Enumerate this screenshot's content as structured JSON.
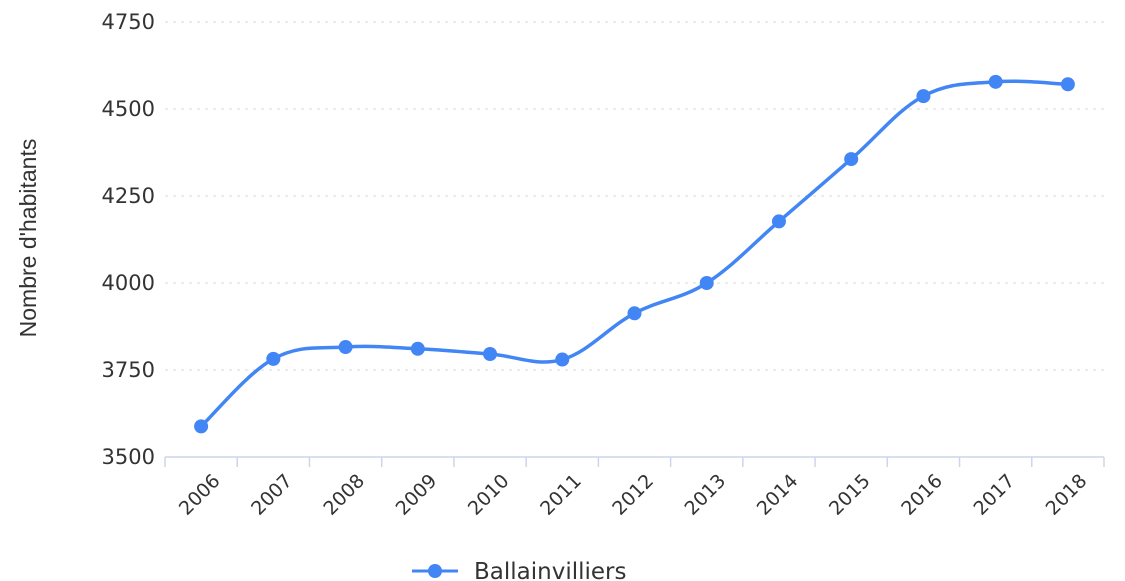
{
  "chart_data": {
    "type": "line",
    "title": "",
    "xlabel": "",
    "ylabel": "Nombre d'habitants",
    "categories": [
      "2006",
      "2007",
      "2008",
      "2009",
      "2010",
      "2011",
      "2012",
      "2013",
      "2014",
      "2015",
      "2016",
      "2017",
      "2018"
    ],
    "series": [
      {
        "name": "Ballainvilliers",
        "color": "#4285f4",
        "values": [
          3588,
          3782,
          3816,
          3811,
          3796,
          3780,
          3913,
          4000,
          4177,
          4356,
          4537,
          4578,
          4571
        ]
      }
    ],
    "ylim": [
      3500,
      4750
    ],
    "yticks": [
      "3500",
      "3750",
      "4000",
      "4250",
      "4500",
      "4750"
    ],
    "grid": true,
    "legend": "bottom-center"
  }
}
